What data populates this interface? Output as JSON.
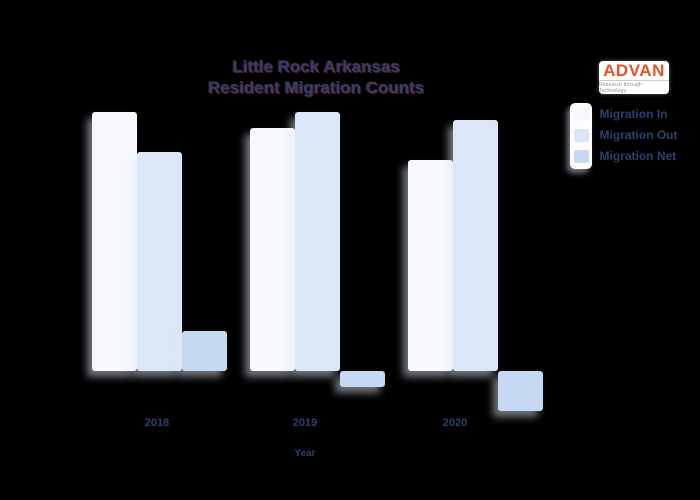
{
  "background_color": "#000000",
  "title": {
    "line1": "Little Rock Arkansas",
    "line2": "Resident Migration Counts",
    "color": "#2c4170"
  },
  "logo": {
    "text": "ADVAN",
    "tagline": "Research through Technology",
    "text_color": "#e4512b",
    "tagline_color": "#8c8c8c",
    "background_color": "#ffffff"
  },
  "legend": {
    "items": [
      {
        "label": "Migration In",
        "color": "#f6f8fe"
      },
      {
        "label": "Migration Out",
        "color": "#dbe7f8"
      },
      {
        "label": "Migration Net",
        "color": "#c5daf2"
      }
    ],
    "text_color": "#2c4170"
  },
  "x_axis": {
    "title": "Year",
    "labels": [
      "2018",
      "2019",
      "2020"
    ]
  },
  "chart_data": {
    "type": "bar",
    "title": "Little Rock Arkansas Resident Migration Counts",
    "categories": [
      "2018",
      "2019",
      "2020"
    ],
    "series": [
      {
        "name": "Migration In",
        "color": "#f6f8fe",
        "values": [
          259,
          243,
          211
        ]
      },
      {
        "name": "Migration Out",
        "color": "#dbe7f8",
        "values": [
          219,
          259,
          251
        ]
      },
      {
        "name": "Migration Net",
        "color": "#c5daf2",
        "values": [
          40,
          -16,
          -40
        ]
      }
    ],
    "xlabel": "Year",
    "ylabel": "",
    "value_units": "relative units (no y-axis ticks or gridlines visible in image)",
    "ylim": [
      -50,
      280
    ],
    "grid": false,
    "legend_position": "top-right",
    "note": "Net = In - Out; negative net bars in 2019 and 2020 extend below the baseline"
  }
}
